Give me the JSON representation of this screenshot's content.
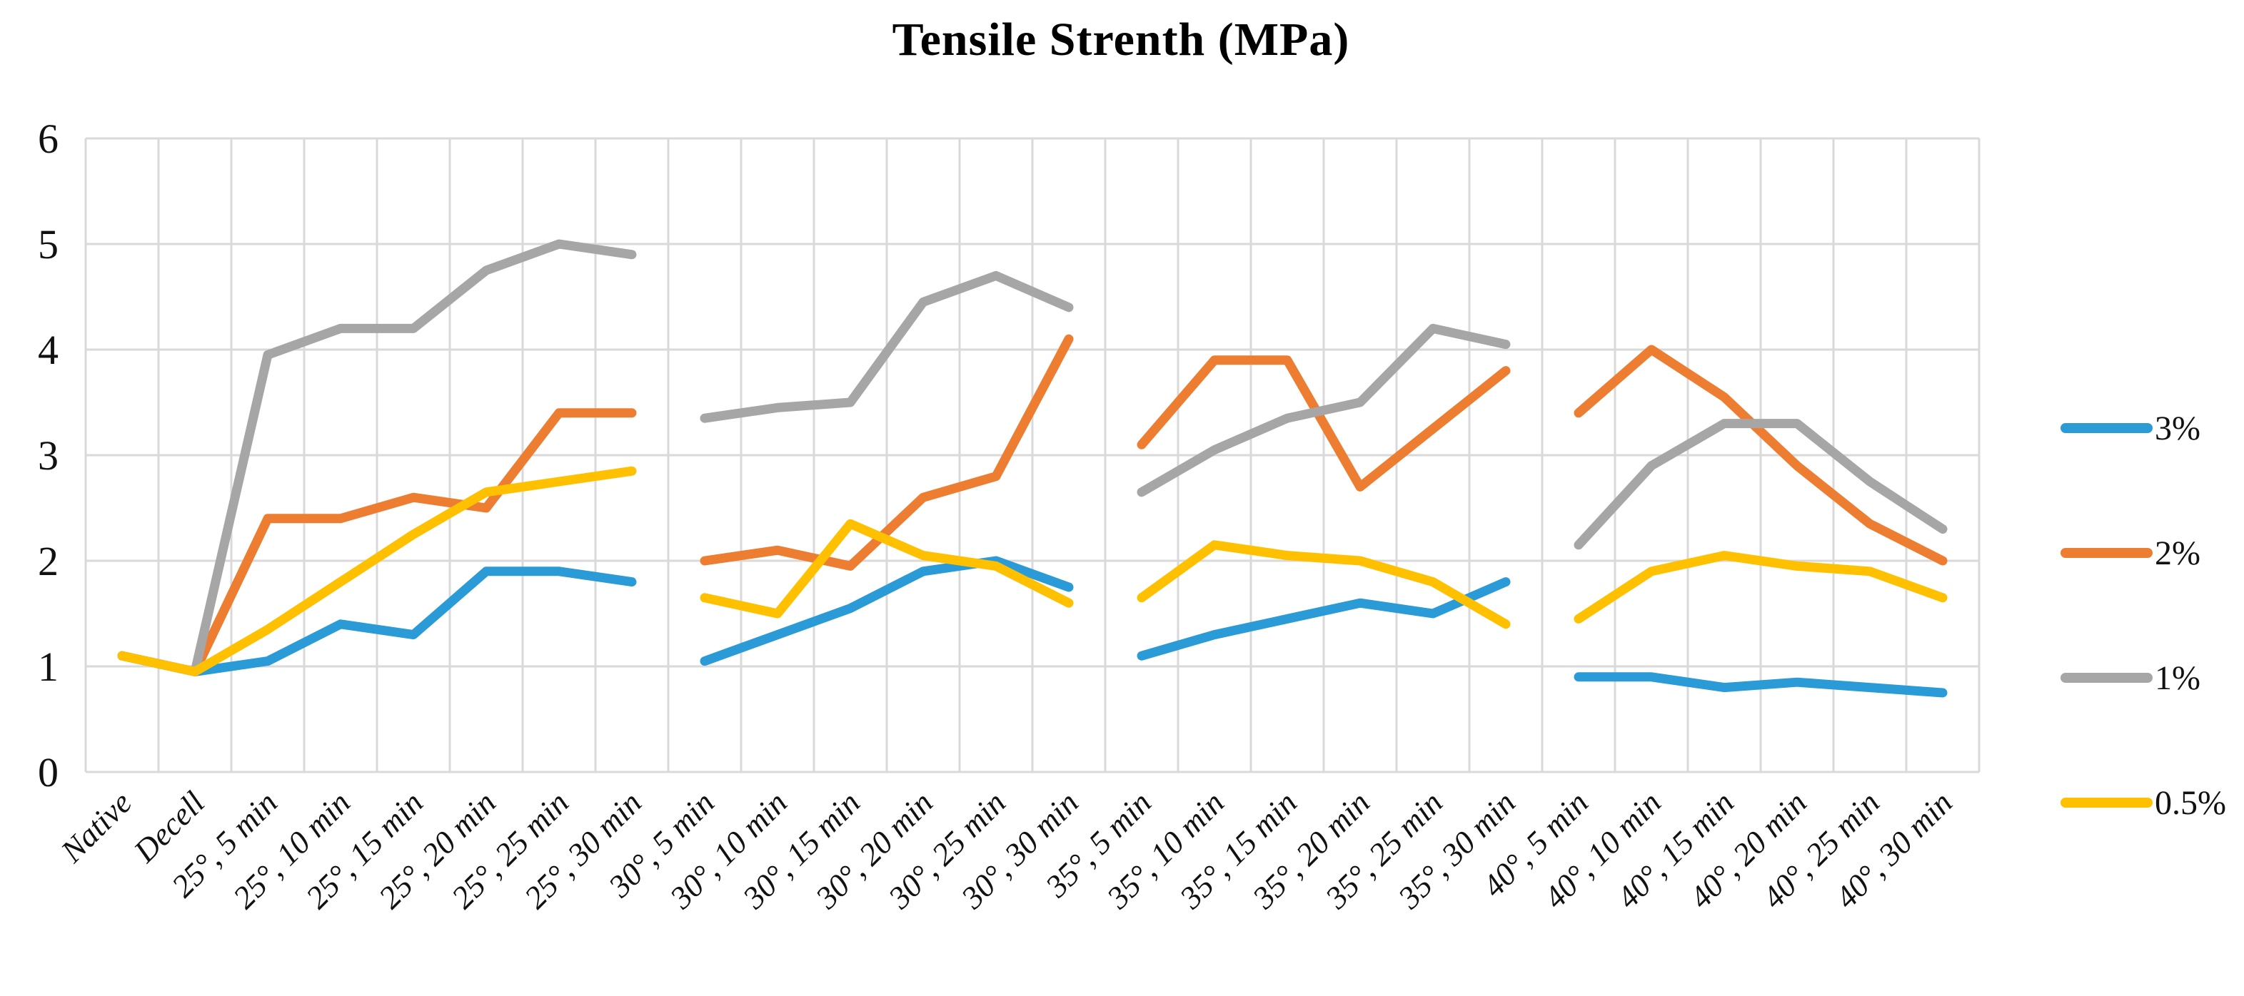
{
  "title": "Tensile Strenth (MPa)",
  "chart_data": {
    "type": "line",
    "title": "Tensile Strenth (MPa)",
    "xlabel": "",
    "ylabel": "",
    "ylim": [
      0,
      6
    ],
    "y_ticks": [
      0,
      1,
      2,
      3,
      4,
      5,
      6
    ],
    "grid": true,
    "grid_color": "#D9D9D9",
    "legend_position": "right",
    "categories": [
      "Native",
      "Decell",
      "25°, 5 min",
      "25°, 10 min",
      "25°, 15 min",
      "25°, 20 min",
      "25°, 25 min",
      "25°, 30 min",
      "30°, 5 min",
      "30°, 10 min",
      "30°, 15 min",
      "30°, 20 min",
      "30°, 25 min",
      "30°, 30 min",
      "35°, 5 min",
      "35°, 10 min",
      "35°, 15 min",
      "35°, 20 min",
      "35°, 25 min",
      "35°, 30 min",
      "40°, 5 min",
      "40°, 10 min",
      "40°, 15 min",
      "40°, 20 min",
      "40°, 25 min",
      "40°, 30 min"
    ],
    "segments": [
      [
        0,
        7
      ],
      [
        8,
        13
      ],
      [
        14,
        19
      ],
      [
        20,
        25
      ]
    ],
    "series": [
      {
        "name": "3%",
        "color": "#2B9BD7",
        "values": [
          1.1,
          0.95,
          1.05,
          1.4,
          1.3,
          1.9,
          1.9,
          1.8,
          1.05,
          1.3,
          1.55,
          1.9,
          2.0,
          1.75,
          1.1,
          1.3,
          1.45,
          1.6,
          1.5,
          1.8,
          0.9,
          0.9,
          0.8,
          0.85,
          0.8,
          0.75
        ]
      },
      {
        "name": "2%",
        "color": "#ED7D31",
        "values": [
          1.1,
          0.95,
          2.4,
          2.4,
          2.6,
          2.5,
          3.4,
          3.4,
          2.0,
          2.1,
          1.95,
          2.6,
          2.8,
          4.1,
          3.1,
          3.9,
          3.9,
          2.7,
          3.25,
          3.8,
          3.4,
          4.0,
          3.55,
          2.9,
          2.35,
          2.0
        ]
      },
      {
        "name": "1%",
        "color": "#A6A6A6",
        "values": [
          1.1,
          0.95,
          3.95,
          4.2,
          4.2,
          4.75,
          5.0,
          4.9,
          3.35,
          3.45,
          3.5,
          4.45,
          4.7,
          4.4,
          2.65,
          3.05,
          3.35,
          3.5,
          4.2,
          4.05,
          2.15,
          2.9,
          3.3,
          3.3,
          2.75,
          2.3
        ]
      },
      {
        "name": "0.5%",
        "color": "#FFC000",
        "values": [
          1.1,
          0.95,
          1.35,
          1.8,
          2.25,
          2.65,
          2.75,
          2.85,
          1.65,
          1.5,
          2.35,
          2.05,
          1.95,
          1.6,
          1.65,
          2.15,
          2.05,
          2.0,
          1.8,
          1.4,
          1.45,
          1.9,
          2.05,
          1.95,
          1.9,
          1.65
        ]
      }
    ]
  }
}
